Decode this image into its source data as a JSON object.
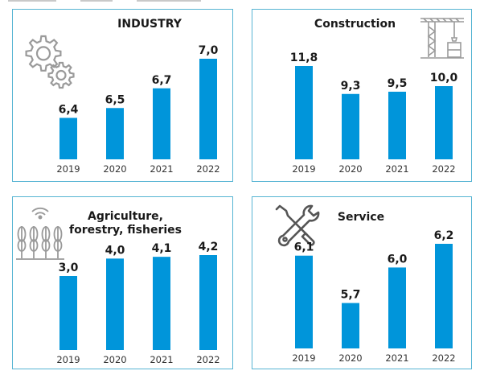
{
  "colors": {
    "bar": "#0095da",
    "border": "#56b4d3",
    "icon": "#9a9a9a"
  },
  "icons": [
    "gears-icon",
    "crane-icon",
    "wheat-icon",
    "wrench-screwdriver-icon"
  ],
  "panels": [
    {
      "title_lines": [
        "INDUSTRY"
      ]
    },
    {
      "title_lines": [
        "Construction"
      ]
    },
    {
      "title_lines": [
        "Agriculture,",
        "forestry, fisheries"
      ]
    },
    {
      "title_lines": [
        "Service"
      ]
    }
  ],
  "chart_data": [
    {
      "type": "bar",
      "title": "INDUSTRY",
      "categories": [
        "2019",
        "2020",
        "2021",
        "2022"
      ],
      "values": [
        6.4,
        6.5,
        6.7,
        7.0
      ],
      "value_labels": [
        "6,4",
        "6,5",
        "6,7",
        "7,0"
      ],
      "ylim": [
        6.2,
        7.0
      ],
      "grid": false,
      "xlabel": "",
      "ylabel": ""
    },
    {
      "type": "bar",
      "title": "Construction",
      "categories": [
        "2019",
        "2020",
        "2021",
        "2022"
      ],
      "values": [
        11.8,
        9.3,
        9.5,
        10.0
      ],
      "value_labels": [
        "11,8",
        "9,3",
        "9,5",
        "10,0"
      ],
      "ylim": [
        5.4,
        11.8
      ],
      "grid": false,
      "xlabel": "",
      "ylabel": ""
    },
    {
      "type": "bar",
      "title": "Agriculture, forestry, fisheries",
      "categories": [
        "2019",
        "2020",
        "2021",
        "2022"
      ],
      "values": [
        3.0,
        4.0,
        4.1,
        4.2
      ],
      "value_labels": [
        "3,0",
        "4,0",
        "4,1",
        "4,2"
      ],
      "ylim": [
        0,
        4.2
      ],
      "grid": false,
      "xlabel": "",
      "ylabel": ""
    },
    {
      "type": "bar",
      "title": "Service",
      "categories": [
        "2019",
        "2020",
        "2021",
        "2022"
      ],
      "values": [
        6.1,
        5.7,
        6.0,
        6.2
      ],
      "value_labels": [
        "6,1",
        "5,7",
        "6,0",
        "6,2"
      ],
      "ylim": [
        5.5,
        6.2
      ],
      "grid": false,
      "xlabel": "",
      "ylabel": ""
    }
  ]
}
